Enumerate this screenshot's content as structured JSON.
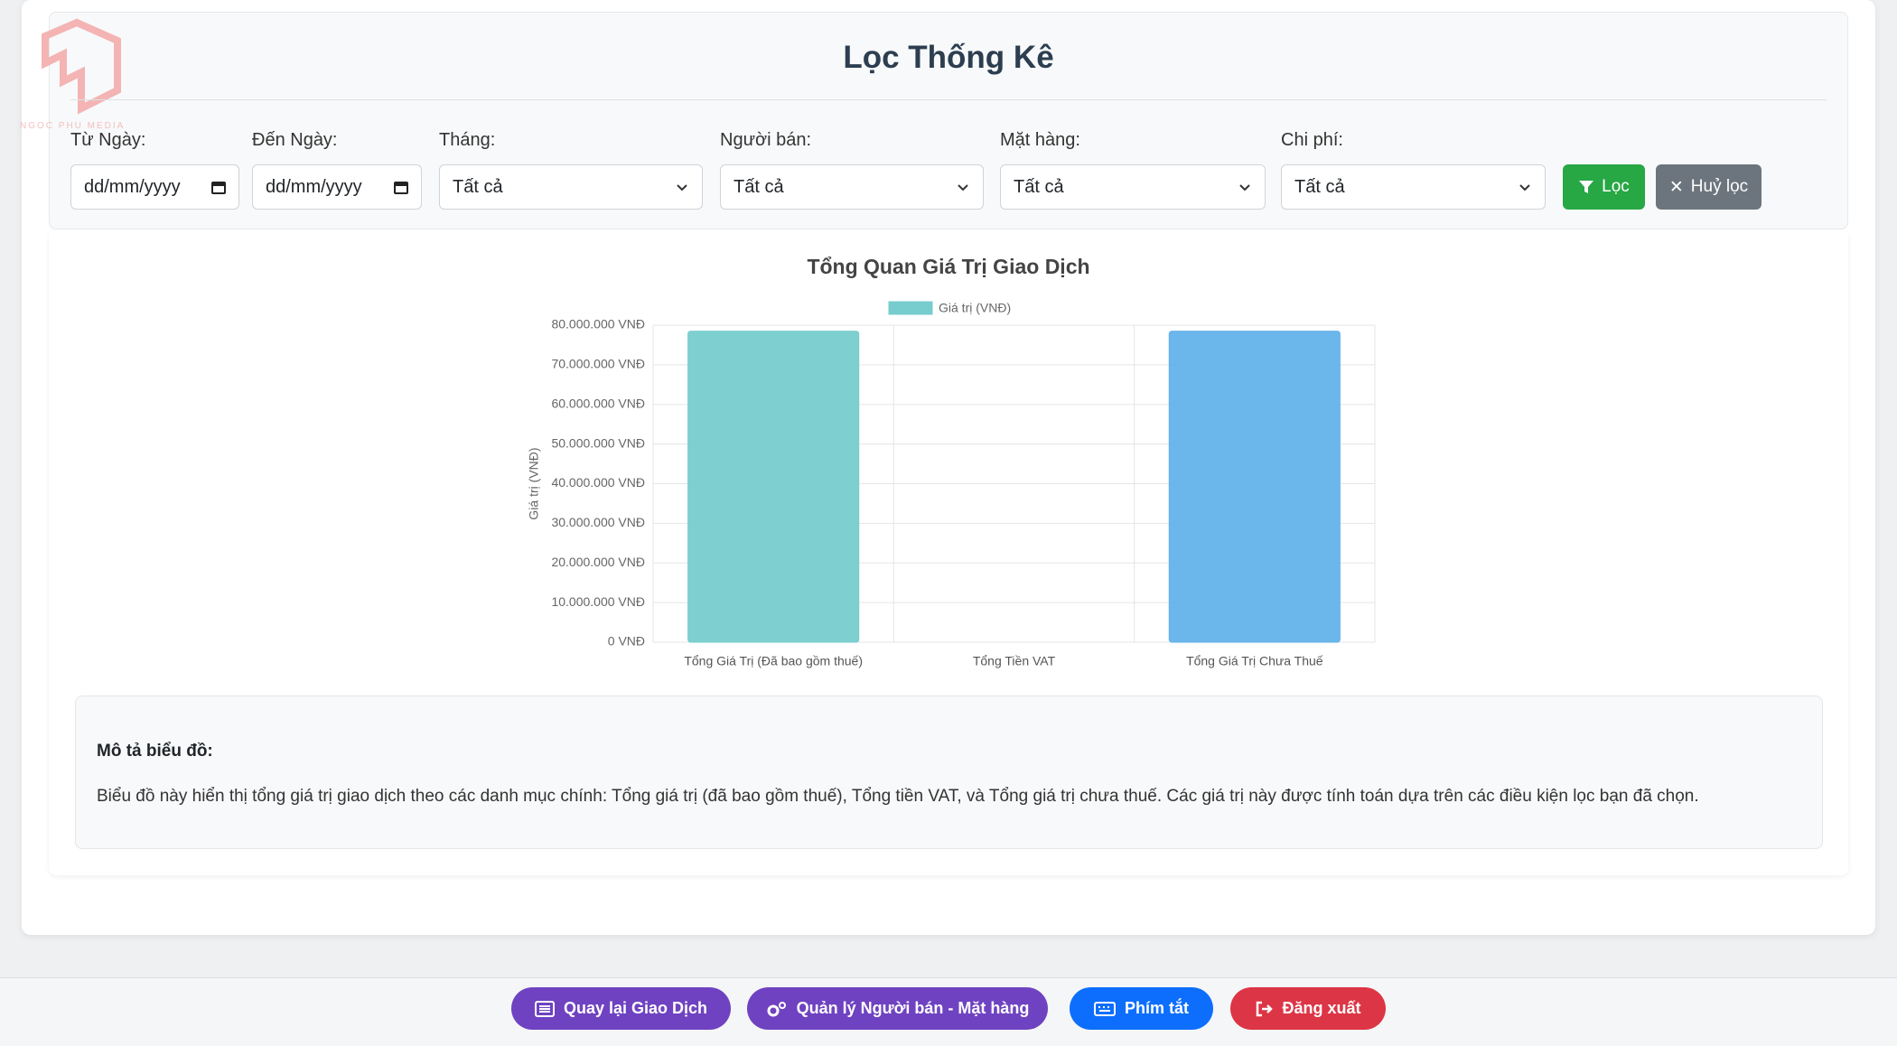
{
  "watermark": "NGOC PHU MEDIA",
  "filter": {
    "title": "Lọc Thống Kê",
    "fields": [
      {
        "label": "Từ Ngày:",
        "value": "dd/mm/yyyy"
      },
      {
        "label": "Đến Ngày:",
        "value": "dd/mm/yyyy"
      },
      {
        "label": "Tháng:",
        "value": "Tất cả"
      },
      {
        "label": "Người bán:",
        "value": "Tất cả"
      },
      {
        "label": "Mặt hàng:",
        "value": "Tất cả"
      },
      {
        "label": "Chi phí:",
        "value": "Tất cả"
      }
    ],
    "apply": "Lọc",
    "clear": "Huỷ lọc"
  },
  "chart_data": {
    "type": "bar",
    "title": "Tổng Quan Giá Trị Giao Dịch",
    "y_label": "Giá trị (VNĐ)",
    "categories": [
      "Tổng Giá Trị (Đã bao gồm thuế)",
      "Tổng Tiền VAT",
      "Tổng Giá Trị Chưa Thuế"
    ],
    "series": [
      {
        "name": "Giá trị (VNĐ)",
        "color": "#77cdcd",
        "values": [
          78500000,
          0,
          78500000
        ],
        "colors": [
          "#77cdcd",
          "#ffcd56",
          "#63b3ea"
        ]
      }
    ],
    "ylim": [
      0,
      80000000
    ],
    "yticks": [
      {
        "value": 0,
        "label": "0 VNĐ"
      },
      {
        "value": 10000000,
        "label": "10.000.000 VNĐ"
      },
      {
        "value": 20000000,
        "label": "20.000.000 VNĐ"
      },
      {
        "value": 30000000,
        "label": "30.000.000 VNĐ"
      },
      {
        "value": 40000000,
        "label": "40.000.000 VNĐ"
      },
      {
        "value": 50000000,
        "label": "50.000.000 VNĐ"
      },
      {
        "value": 60000000,
        "label": "60.000.000 VNĐ"
      },
      {
        "value": 70000000,
        "label": "70.000.000 VNĐ"
      },
      {
        "value": 80000000,
        "label": "80.000.000 VNĐ"
      }
    ],
    "grid": true,
    "legend": "top"
  },
  "description": {
    "heading": "Mô tả biểu đồ:",
    "text": "Biểu đồ này hiển thị tổng giá trị giao dịch theo các danh mục chính: Tổng giá trị (đã bao gồm thuế), Tổng tiền VAT, và Tổng giá trị chưa thuế. Các giá trị này được tính toán dựa trên các điều kiện lọc bạn đã chọn."
  },
  "footer": [
    "Quay lại Giao Dịch",
    "Quản lý Người bán - Mặt hàng",
    "Phím tắt",
    "Đăng xuất"
  ]
}
